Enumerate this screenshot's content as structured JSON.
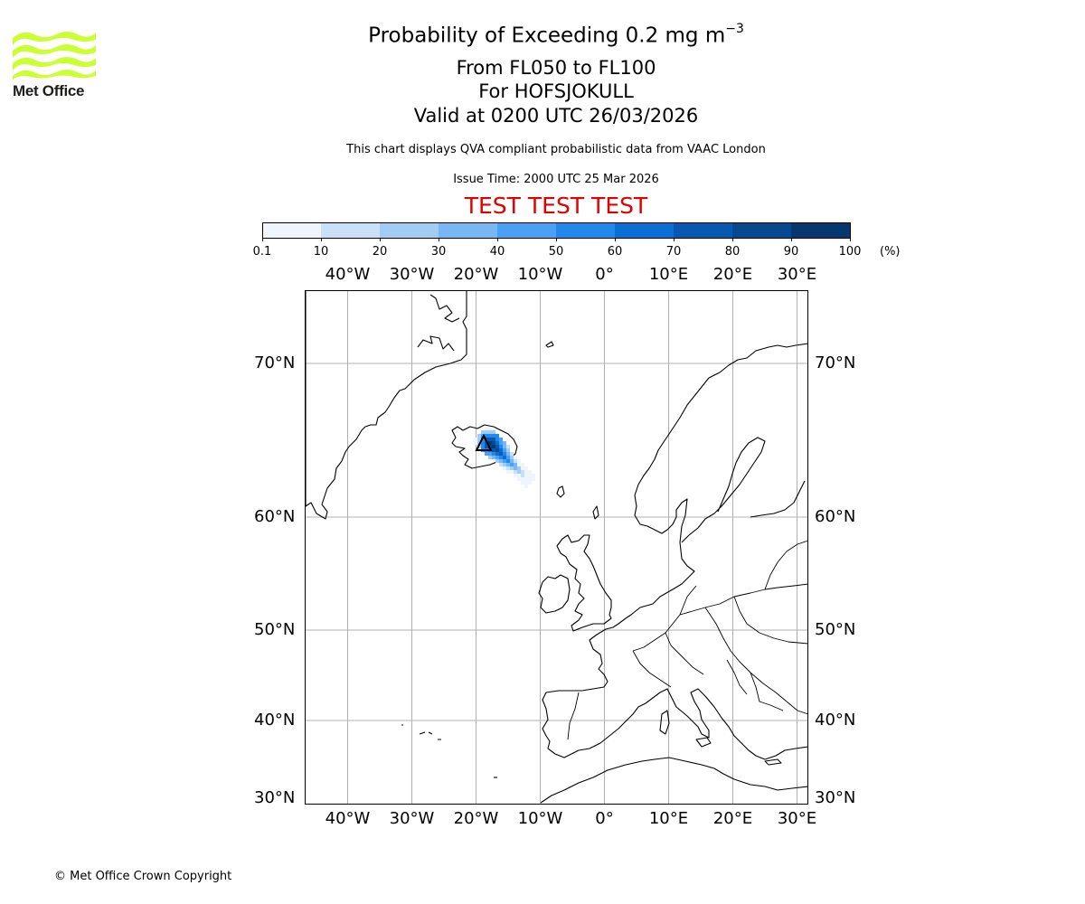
{
  "header": {
    "title_prefix": "Probability of Exceeding 0.2 mg m",
    "title_sup": "−3",
    "levels": "From FL050 to FL100",
    "volcano": "For HOFSJOKULL",
    "valid": "Valid at 0200 UTC 26/03/2026",
    "note": "This chart displays QVA compliant probabilistic data from VAAC London",
    "issue_time": "Issue Time: 2000 UTC 25 Mar 2026",
    "test_banner": "TEST TEST TEST"
  },
  "logo": {
    "text": "Met Office",
    "icon": "met-office-wave-logo",
    "color": "#ccff33"
  },
  "colorbar": {
    "ticks": [
      "0.1",
      "10",
      "20",
      "30",
      "40",
      "50",
      "60",
      "70",
      "80",
      "90",
      "100"
    ],
    "unit": "(%)",
    "colors": [
      "#eef5fd",
      "#c9e0f7",
      "#a3ccf4",
      "#78b7f5",
      "#4aa0f3",
      "#2289ec",
      "#0a6fd4",
      "#0658b0",
      "#054991",
      "#04386f"
    ]
  },
  "map": {
    "lon_labels": [
      "40°W",
      "30°W",
      "20°W",
      "10°W",
      "0°",
      "10°E",
      "20°E",
      "30°E"
    ],
    "lat_labels": [
      "70°N",
      "60°N",
      "50°N",
      "40°N",
      "30°N"
    ],
    "lon_values": [
      -40,
      -30,
      -20,
      -10,
      0,
      10,
      20,
      30
    ],
    "lat_values": [
      70,
      60,
      50,
      40,
      30
    ],
    "volcano_marker": "triangle-icon"
  },
  "footer": {
    "copyright": "© Met Office Crown Copyright"
  }
}
